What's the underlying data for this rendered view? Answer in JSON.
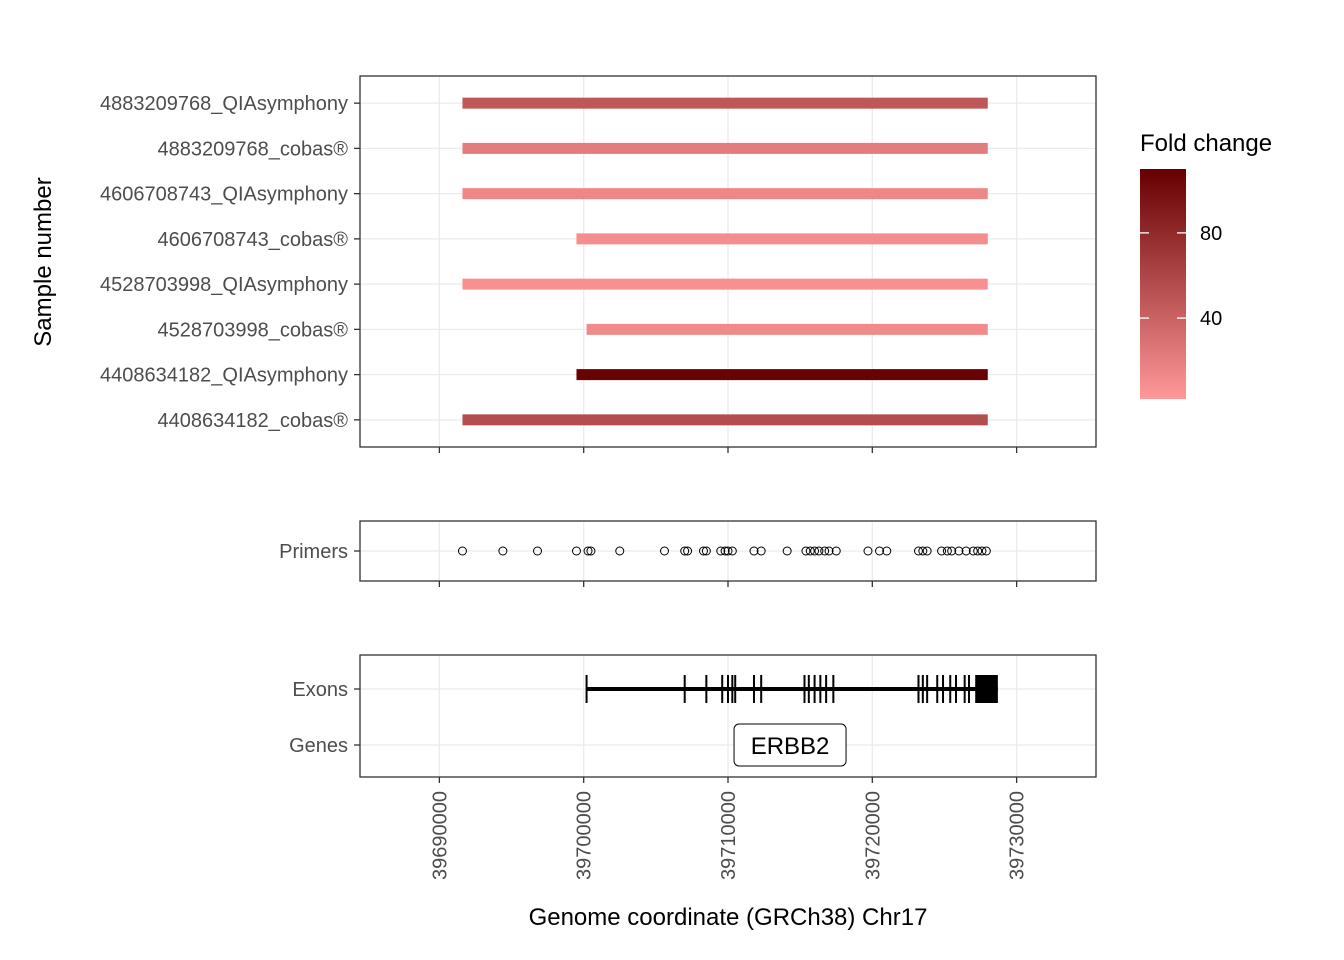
{
  "chart_data": [
    {
      "type": "bar",
      "panel": "samples",
      "ylabel": "Sample number",
      "samples": [
        {
          "name": "4883209768_QIAsymphony",
          "start": 39691600,
          "end": 39728000,
          "fold_change": 48
        },
        {
          "name": "4883209768_cobas®",
          "start": 39691600,
          "end": 39728000,
          "fold_change": 22
        },
        {
          "name": "4606708743_QIAsymphony",
          "start": 39691600,
          "end": 39728000,
          "fold_change": 14
        },
        {
          "name": "4606708743_cobas®",
          "start": 39699500,
          "end": 39728000,
          "fold_change": 10
        },
        {
          "name": "4528703998_QIAsymphony",
          "start": 39691600,
          "end": 39728000,
          "fold_change": 8
        },
        {
          "name": "4528703998_cobas®",
          "start": 39700200,
          "end": 39728000,
          "fold_change": 12
        },
        {
          "name": "4408634182_QIAsymphony",
          "start": 39699500,
          "end": 39728000,
          "fold_change": 108
        },
        {
          "name": "4408634182_cobas®",
          "start": 39691600,
          "end": 39728000,
          "fold_change": 55
        }
      ],
      "legend": {
        "title": "Fold change",
        "ticks": [
          40,
          80
        ],
        "range": [
          2,
          110
        ],
        "color_low": "#ff9999",
        "color_high": "#660000",
        "placement": "right"
      }
    },
    {
      "type": "scatter",
      "panel": "primers",
      "category": "Primers",
      "x": [
        39691600,
        39694400,
        39696800,
        39699500,
        39700300,
        39700500,
        39702500,
        39705600,
        39707000,
        39707200,
        39708300,
        39708500,
        39709500,
        39709800,
        39710000,
        39710300,
        39711800,
        39712300,
        39714100,
        39715400,
        39715700,
        39716000,
        39716300,
        39716700,
        39717000,
        39717500,
        39719700,
        39720500,
        39721000,
        39723200,
        39723500,
        39723800,
        39724800,
        39725200,
        39725500,
        39726000,
        39726500,
        39727000,
        39727300,
        39727600,
        39727900
      ]
    },
    {
      "type": "gene-track",
      "panel": "annotation",
      "categories": [
        "Exons",
        "Genes"
      ],
      "exon_span": [
        39700200,
        39728700
      ],
      "exon_ticks": [
        39700200,
        39707000,
        39708500,
        39709600,
        39710000,
        39710300,
        39710500,
        39711800,
        39712300,
        39715300,
        39715600,
        39716000,
        39716400,
        39716800,
        39717300,
        39723200,
        39723500,
        39723800,
        39724500,
        39724900,
        39725400,
        39725800,
        39726400,
        39726700,
        39727200
      ],
      "exon_block": [
        39727200,
        39728700
      ],
      "gene_label": "ERBB2",
      "gene_label_x": 39714300
    }
  ],
  "x_axis": {
    "label": "Genome coordinate (GRCh38) Chr17",
    "range": [
      39684500,
      39735500
    ],
    "ticks": [
      "39690000",
      "39700000",
      "39710000",
      "39720000",
      "39730000"
    ],
    "tick_values": [
      39690000,
      39700000,
      39710000,
      39720000,
      39730000
    ]
  }
}
